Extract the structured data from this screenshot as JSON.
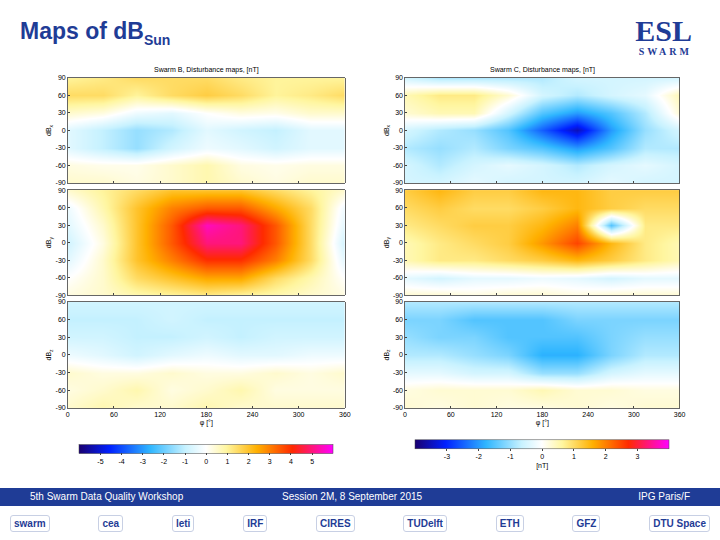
{
  "title": "Maps of dB",
  "title_subscript": "Sun",
  "logo": {
    "main": "ESL",
    "sub": "SWARM"
  },
  "footer": {
    "left": "5th Swarm Data Quality Workshop",
    "center": "Session 2M, 8 September 2015",
    "right": "IPG Paris/F"
  },
  "logos": [
    "swarm",
    "cea",
    "leti",
    "IRF",
    "CIRES",
    "TUDelft",
    "ETH",
    "GFZ",
    "DTU Space"
  ],
  "chart_data": [
    {
      "type": "heatmap",
      "title": "Swarm B, Disturbance maps, [nT]",
      "x": [
        0,
        45,
        90,
        135,
        180,
        225,
        270,
        315,
        360
      ],
      "y": [
        -90,
        -60,
        -30,
        0,
        30,
        60,
        90
      ],
      "xlim": [
        0,
        360
      ],
      "ylim": [
        -90,
        90
      ],
      "xticks": [
        0,
        60,
        120,
        180,
        240,
        300,
        360
      ],
      "yticks": [
        -90,
        -60,
        -30,
        0,
        30,
        60,
        90
      ],
      "xlabel": "φ [°]",
      "colorbar": {
        "range": [
          -6,
          6
        ],
        "ticks": [
          -5,
          -4,
          -3,
          -2,
          -1,
          0,
          1,
          2,
          3,
          4,
          5
        ]
      },
      "panels": [
        {
          "ylabel": "dB",
          "ylabel_subscript": "x",
          "tick_labels": "y",
          "z": [
            [
              0.5,
              0.5,
              0.3,
              0.5,
              0.8,
              0.5,
              0.3,
              0.5,
              0.5
            ],
            [
              0.3,
              0.2,
              0.2,
              0.5,
              0.8,
              0.3,
              0.2,
              0.3,
              0.3
            ],
            [
              -0.5,
              -1,
              -1.5,
              -0.8,
              -0.3,
              -0.5,
              -0.8,
              -0.5,
              -0.5
            ],
            [
              -0.5,
              -1,
              -1.5,
              -1.2,
              -0.5,
              -0.8,
              -1,
              -0.5,
              -0.5
            ],
            [
              0.5,
              0.3,
              -0.3,
              -0.5,
              0,
              0.3,
              0.2,
              0.5,
              0.5
            ],
            [
              1.5,
              1.5,
              1,
              1.5,
              1.8,
              1.5,
              1,
              1.2,
              1.5
            ],
            [
              1,
              1.2,
              1.5,
              1.5,
              1.5,
              1.2,
              1,
              1,
              1
            ]
          ]
        },
        {
          "ylabel": "dB",
          "ylabel_subscript": "y",
          "tick_labels": "y",
          "z": [
            [
              0.3,
              0.5,
              0.8,
              1,
              1.2,
              1,
              0.8,
              0.5,
              0.3
            ],
            [
              0,
              0.5,
              1.5,
              2,
              2.5,
              2.5,
              1.5,
              0.8,
              0
            ],
            [
              -0.5,
              0.5,
              2,
              3,
              4,
              4,
              3,
              1.5,
              -0.5
            ],
            [
              -0.8,
              0.3,
              2,
              3.5,
              5,
              5,
              3.5,
              1.5,
              -0.8
            ],
            [
              -0.5,
              0.5,
              2,
              3.5,
              5.5,
              5,
              3.5,
              1.5,
              -0.5
            ],
            [
              -0.3,
              0.8,
              2,
              3,
              3.5,
              3.5,
              2.5,
              1.5,
              -0.3
            ],
            [
              0.5,
              1,
              1.5,
              2,
              2,
              2,
              1.5,
              1,
              0.5
            ]
          ]
        },
        {
          "ylabel": "dB",
          "ylabel_subscript": "z",
          "z": [
            [
              0.5,
              0.8,
              0.5,
              0.5,
              0.8,
              0.5,
              0.5,
              0.5,
              0.5
            ],
            [
              0.3,
              0.5,
              0.8,
              0.3,
              0.5,
              0.8,
              0.3,
              0.3,
              0.3
            ],
            [
              0.5,
              0.3,
              0.3,
              0.5,
              0.3,
              0.3,
              0.5,
              0.3,
              0.5
            ],
            [
              -0.3,
              -0.5,
              -0.8,
              -0.5,
              -0.3,
              -0.5,
              -0.5,
              -0.3,
              -0.3
            ],
            [
              -0.8,
              -0.8,
              -1,
              -1,
              -0.8,
              -1,
              -0.8,
              -0.8,
              -0.8
            ],
            [
              -1,
              -1,
              -1,
              -0.8,
              -1,
              -1,
              -1,
              -1,
              -1
            ],
            [
              -0.8,
              -0.8,
              -0.8,
              -0.8,
              -0.8,
              -0.8,
              -0.8,
              -0.8,
              -0.8
            ]
          ]
        }
      ]
    },
    {
      "type": "heatmap",
      "title": "Swarm C, Disturbance maps, [nT]",
      "x": [
        0,
        45,
        90,
        135,
        180,
        225,
        270,
        315,
        360
      ],
      "y": [
        -90,
        -60,
        -30,
        0,
        30,
        60,
        90
      ],
      "xlim": [
        0,
        360
      ],
      "ylim": [
        -90,
        90
      ],
      "xticks": [
        0,
        60,
        120,
        180,
        240,
        300,
        360
      ],
      "yticks": [
        -90,
        -60,
        -30,
        0,
        30,
        60,
        90
      ],
      "xlabel": "φ [°]",
      "colorbar": {
        "range": [
          -4,
          4
        ],
        "ticks": [
          -3,
          -2,
          -1,
          0,
          1,
          2,
          3
        ],
        "label": "[nT]"
      },
      "panels": [
        {
          "ylabel": "dB",
          "ylabel_subscript": "x",
          "tick_labels": "y",
          "z": [
            [
              -0.5,
              -0.5,
              -0.3,
              -0.5,
              -0.5,
              -0.5,
              -0.3,
              -0.5,
              -0.5
            ],
            [
              -0.5,
              -0.8,
              -0.5,
              -0.3,
              -0.5,
              -0.8,
              -0.5,
              -0.3,
              -0.5
            ],
            [
              -0.8,
              -1,
              -0.8,
              -1.2,
              -1.5,
              -2,
              -1.5,
              -0.8,
              -0.8
            ],
            [
              -0.5,
              -0.8,
              -1,
              -1.5,
              -2.5,
              -3.5,
              -2,
              -1,
              -0.5
            ],
            [
              0.3,
              0.5,
              0.5,
              -0.5,
              -1.5,
              -2,
              -1.5,
              -0.8,
              0.3
            ],
            [
              0.5,
              0.8,
              0.8,
              0.3,
              -0.5,
              -0.8,
              -0.5,
              -0.3,
              0.5
            ],
            [
              -0.5,
              -0.8,
              -0.8,
              -0.8,
              -0.8,
              -0.5,
              -0.5,
              -0.5,
              -0.5
            ]
          ]
        },
        {
          "ylabel": "dB",
          "ylabel_subscript": "y",
          "tick_labels": "y",
          "z": [
            [
              0.3,
              0.3,
              0.2,
              0.3,
              0.3,
              0.2,
              0.3,
              0.3,
              0.3
            ],
            [
              -0.3,
              -0.5,
              -0.3,
              -0.3,
              -0.2,
              -0.3,
              -0.5,
              -0.3,
              -0.3
            ],
            [
              0.5,
              0.8,
              0.8,
              1,
              1.2,
              1.5,
              1.2,
              0.8,
              0.5
            ],
            [
              0.5,
              0.8,
              1,
              1.2,
              1.8,
              2.5,
              1.5,
              0.8,
              0.5
            ],
            [
              0.8,
              1,
              1.2,
              1.2,
              1.5,
              2,
              -1.5,
              0.8,
              0.8
            ],
            [
              1,
              1.2,
              1,
              1,
              1.2,
              1.5,
              1.2,
              1,
              1
            ],
            [
              1.2,
              1.5,
              1.2,
              1.2,
              1.5,
              1.5,
              1.2,
              1.2,
              1.2
            ]
          ]
        },
        {
          "ylabel": "dB",
          "ylabel_subscript": "z",
          "z": [
            [
              0.3,
              0.2,
              0.3,
              0.2,
              0.2,
              0.3,
              0.2,
              0.3,
              0.3
            ],
            [
              0.2,
              0.3,
              0.3,
              0.3,
              0.5,
              0.3,
              0.3,
              0.2,
              0.2
            ],
            [
              -0.3,
              -0.3,
              -0.5,
              -0.5,
              -1,
              -1,
              -0.5,
              -0.3,
              -0.3
            ],
            [
              -0.8,
              -0.8,
              -1,
              -1.2,
              -1.8,
              -1.8,
              -1.2,
              -0.8,
              -0.8
            ],
            [
              -1,
              -1.2,
              -1.2,
              -1.5,
              -1.5,
              -1.5,
              -1.2,
              -1,
              -1
            ],
            [
              -1.2,
              -1.2,
              -1.5,
              -1.5,
              -1.5,
              -1.2,
              -1.2,
              -1.2,
              -1.2
            ],
            [
              -0.8,
              -0.8,
              -0.8,
              -0.8,
              -0.8,
              -0.8,
              -0.8,
              -0.8,
              -0.8
            ]
          ]
        }
      ]
    }
  ]
}
